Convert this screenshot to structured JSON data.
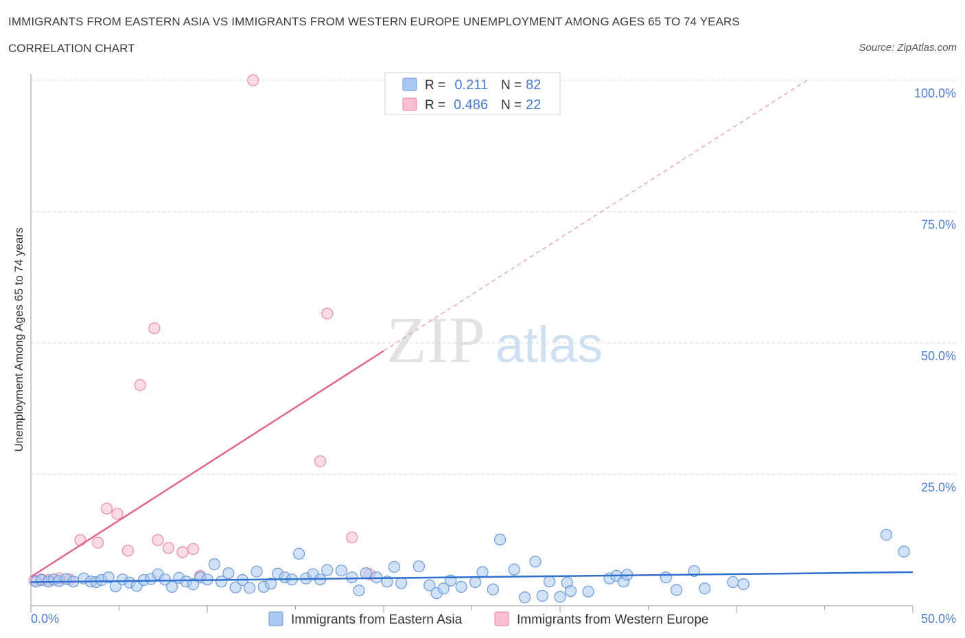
{
  "title": "IMMIGRANTS FROM EASTERN ASIA VS IMMIGRANTS FROM WESTERN EUROPE UNEMPLOYMENT AMONG AGES 65 TO 74 YEARS",
  "subtitle": "CORRELATION CHART",
  "source": "Source: ZipAtlas.com",
  "watermark": {
    "zip": "ZIP",
    "atlas": "atlas"
  },
  "colors": {
    "blue_fill": "#aac8f2",
    "blue_stroke": "#6a9ad8",
    "blue_line": "#2f6fcf",
    "pink_fill": "#f7bfd0",
    "pink_stroke": "#e88aa8",
    "pink_line": "#e0628e",
    "axis_text": "#4a7bcf",
    "grid": "#d8d8d8"
  },
  "legend": {
    "rows": [
      {
        "r_label": "R =",
        "r_value": "0.211",
        "n_label": "N =",
        "n_value": "82",
        "series": "blue"
      },
      {
        "r_label": "R =",
        "r_value": "0.486",
        "n_label": "N =",
        "n_value": "22",
        "series": "pink"
      }
    ]
  },
  "bottom_legend": [
    "Immigrants from Eastern Asia",
    "Immigrants from Western Europe"
  ],
  "chart_data": {
    "type": "scatter",
    "title": "IMMIGRANTS FROM EASTERN ASIA VS IMMIGRANTS FROM WESTERN EUROPE UNEMPLOYMENT AMONG AGES 65 TO 74 YEARS",
    "xlabel": "",
    "ylabel": "Unemployment Among Ages 65 to 74 years",
    "xlim": [
      0,
      50
    ],
    "ylim": [
      0,
      100
    ],
    "x_tick_labels": [
      "0.0%",
      "50.0%"
    ],
    "y_ticks": [
      25,
      50,
      75,
      100
    ],
    "y_tick_labels": [
      "25.0%",
      "50.0%",
      "75.0%",
      "100.0%"
    ],
    "series": [
      {
        "name": "Immigrants from Eastern Asia",
        "color": "blue",
        "trend": {
          "x": [
            0,
            50
          ],
          "y": [
            4.5,
            6.4
          ],
          "style": "solid"
        },
        "points": [
          [
            0.3,
            4.6
          ],
          [
            0.6,
            4.9
          ],
          [
            1.0,
            4.6
          ],
          [
            1.3,
            5.0
          ],
          [
            1.6,
            4.7
          ],
          [
            2.0,
            5.1
          ],
          [
            2.4,
            4.6
          ],
          [
            3.0,
            5.2
          ],
          [
            3.4,
            4.6
          ],
          [
            3.7,
            4.5
          ],
          [
            4.0,
            4.9
          ],
          [
            4.4,
            5.4
          ],
          [
            4.8,
            3.7
          ],
          [
            5.2,
            5.0
          ],
          [
            5.6,
            4.4
          ],
          [
            6.0,
            3.8
          ],
          [
            6.4,
            4.9
          ],
          [
            6.8,
            5.1
          ],
          [
            7.2,
            6.0
          ],
          [
            7.6,
            5.0
          ],
          [
            8.0,
            3.6
          ],
          [
            8.4,
            5.3
          ],
          [
            8.8,
            4.6
          ],
          [
            9.2,
            4.1
          ],
          [
            9.6,
            5.4
          ],
          [
            10.0,
            5.0
          ],
          [
            10.4,
            7.9
          ],
          [
            10.8,
            4.6
          ],
          [
            11.2,
            6.2
          ],
          [
            11.6,
            3.5
          ],
          [
            12.0,
            4.9
          ],
          [
            12.4,
            3.4
          ],
          [
            12.8,
            6.5
          ],
          [
            13.2,
            3.6
          ],
          [
            13.6,
            4.2
          ],
          [
            14.0,
            6.1
          ],
          [
            14.4,
            5.4
          ],
          [
            14.8,
            5.0
          ],
          [
            15.2,
            9.9
          ],
          [
            15.6,
            5.2
          ],
          [
            16.0,
            6.0
          ],
          [
            16.4,
            5.0
          ],
          [
            16.8,
            6.8
          ],
          [
            17.6,
            6.7
          ],
          [
            18.2,
            5.4
          ],
          [
            18.6,
            2.9
          ],
          [
            19.0,
            6.2
          ],
          [
            19.6,
            5.4
          ],
          [
            20.2,
            4.6
          ],
          [
            20.6,
            7.4
          ],
          [
            21.0,
            4.3
          ],
          [
            22.0,
            7.5
          ],
          [
            22.6,
            3.9
          ],
          [
            23.0,
            2.4
          ],
          [
            23.4,
            3.3
          ],
          [
            23.8,
            4.8
          ],
          [
            24.4,
            3.6
          ],
          [
            25.2,
            4.5
          ],
          [
            25.6,
            6.4
          ],
          [
            26.2,
            3.1
          ],
          [
            26.6,
            12.6
          ],
          [
            27.4,
            6.9
          ],
          [
            28.0,
            1.6
          ],
          [
            28.6,
            8.4
          ],
          [
            29.0,
            1.9
          ],
          [
            29.4,
            4.6
          ],
          [
            30.0,
            1.7
          ],
          [
            30.4,
            4.4
          ],
          [
            30.6,
            2.8
          ],
          [
            31.6,
            2.7
          ],
          [
            32.8,
            5.2
          ],
          [
            33.2,
            5.7
          ],
          [
            33.6,
            4.6
          ],
          [
            33.8,
            5.9
          ],
          [
            36.0,
            5.4
          ],
          [
            36.6,
            3.0
          ],
          [
            37.6,
            6.6
          ],
          [
            38.2,
            3.3
          ],
          [
            39.8,
            4.5
          ],
          [
            40.4,
            4.1
          ],
          [
            48.5,
            13.5
          ],
          [
            49.5,
            10.3
          ]
        ]
      },
      {
        "name": "Immigrants from Western Europe",
        "color": "pink",
        "trend": {
          "x": [
            0,
            20
          ],
          "y": [
            5.5,
            48.5
          ],
          "style": "solid",
          "extension": {
            "x": [
              20,
              44
            ],
            "y": [
              48.5,
              100
            ],
            "style": "dashed"
          }
        },
        "points": [
          [
            0.2,
            4.8
          ],
          [
            0.6,
            5.0
          ],
          [
            1.0,
            4.9
          ],
          [
            1.6,
            5.2
          ],
          [
            2.2,
            5.0
          ],
          [
            2.8,
            12.5
          ],
          [
            3.8,
            12.0
          ],
          [
            4.3,
            18.5
          ],
          [
            4.9,
            17.5
          ],
          [
            5.5,
            10.5
          ],
          [
            6.2,
            42.0
          ],
          [
            7.0,
            52.8
          ],
          [
            7.2,
            12.5
          ],
          [
            7.8,
            11.0
          ],
          [
            8.6,
            10.2
          ],
          [
            9.2,
            10.8
          ],
          [
            9.6,
            5.7
          ],
          [
            12.6,
            100.0
          ],
          [
            16.4,
            27.5
          ],
          [
            16.8,
            55.6
          ],
          [
            18.2,
            13.0
          ],
          [
            19.2,
            6.0
          ]
        ]
      }
    ]
  }
}
